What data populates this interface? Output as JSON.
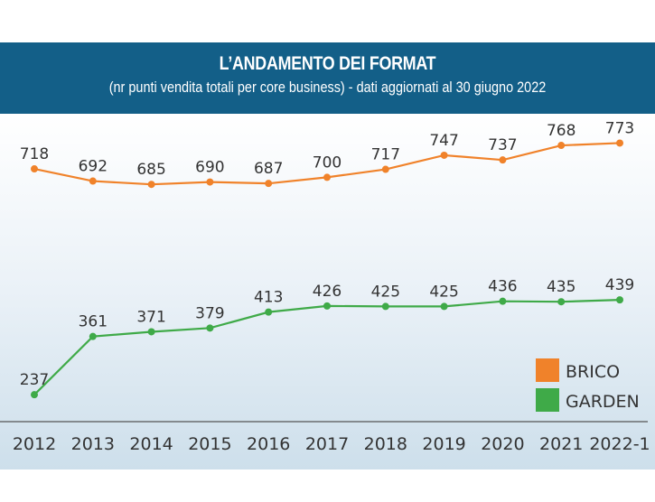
{
  "chart_data": {
    "type": "line",
    "title": "L’ANDAMENTO DEI FORMAT",
    "subtitle": "(nr punti vendita totali per core business) -  dati aggiornati al 30 giugno 2022",
    "categories": [
      "2012",
      "2013",
      "2014",
      "2015",
      "2016",
      "2017",
      "2018",
      "2019",
      "2020",
      "2021",
      "2022-1"
    ],
    "series": [
      {
        "name": "BRICO",
        "color": "#f0822a",
        "values": [
          718,
          692,
          685,
          690,
          687,
          700,
          717,
          747,
          737,
          768,
          773
        ]
      },
      {
        "name": "GARDEN",
        "color": "#3faa48",
        "values": [
          237,
          361,
          371,
          379,
          413,
          426,
          425,
          425,
          436,
          435,
          439
        ]
      }
    ],
    "xlabel": "",
    "ylabel": "",
    "grid": false,
    "legend": "bottom-right"
  }
}
